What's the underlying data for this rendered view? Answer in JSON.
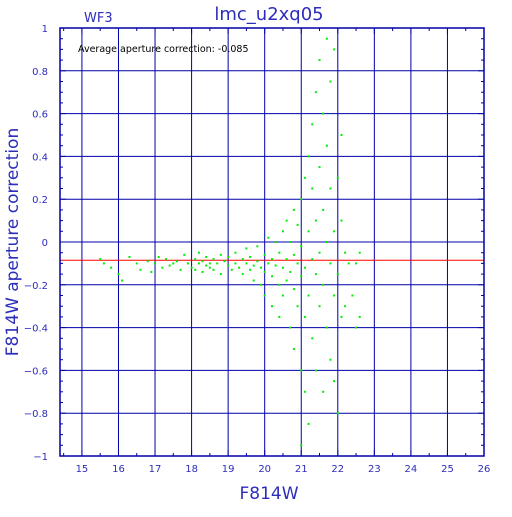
{
  "chart_data": {
    "type": "scatter",
    "title": "lmc_u2xq05",
    "panel_label": "WF3",
    "annotation": "Average aperture correction: -0.085",
    "xlabel": "F814W",
    "ylabel": "F814W aperture correction",
    "xlim": [
      14.4,
      26
    ],
    "ylim": [
      -1,
      1
    ],
    "x_ticks": [
      "15",
      "16",
      "17",
      "18",
      "19",
      "20",
      "21",
      "22",
      "23",
      "24",
      "25",
      "26"
    ],
    "y_ticks": [
      "1",
      "0.8",
      "0.6",
      "0.4",
      "0.2",
      "0",
      "−0.2",
      "−0.4",
      "−0.6",
      "−0.8",
      "−1"
    ],
    "grid": true,
    "reference_line_y": -0.085,
    "colors": {
      "axes": "#0000aa",
      "points": "#00ee00",
      "reference_line": "#ff0000",
      "text": "#2d2dbb"
    },
    "points": [
      [
        15.5,
        -0.08
      ],
      [
        15.6,
        -0.1
      ],
      [
        15.8,
        -0.12
      ],
      [
        16.0,
        -0.15
      ],
      [
        16.1,
        -0.18
      ],
      [
        16.3,
        -0.07
      ],
      [
        16.5,
        -0.1
      ],
      [
        16.6,
        -0.13
      ],
      [
        16.8,
        -0.09
      ],
      [
        16.9,
        -0.14
      ],
      [
        17.0,
        -0.1
      ],
      [
        17.1,
        -0.07
      ],
      [
        17.2,
        -0.12
      ],
      [
        17.3,
        -0.08
      ],
      [
        17.4,
        -0.11
      ],
      [
        17.5,
        -0.1
      ],
      [
        17.6,
        -0.09
      ],
      [
        17.7,
        -0.13
      ],
      [
        17.8,
        -0.06
      ],
      [
        17.9,
        -0.1
      ],
      [
        18.0,
        -0.12
      ],
      [
        18.1,
        -0.08
      ],
      [
        18.1,
        -0.13
      ],
      [
        18.2,
        -0.1
      ],
      [
        18.2,
        -0.05
      ],
      [
        18.3,
        -0.14
      ],
      [
        18.3,
        -0.09
      ],
      [
        18.4,
        -0.11
      ],
      [
        18.4,
        -0.07
      ],
      [
        18.5,
        -0.12
      ],
      [
        18.5,
        -0.1
      ],
      [
        18.6,
        -0.08
      ],
      [
        18.6,
        -0.13
      ],
      [
        18.7,
        -0.1
      ],
      [
        18.8,
        -0.06
      ],
      [
        18.8,
        -0.15
      ],
      [
        18.9,
        -0.09
      ],
      [
        19.0,
        -0.11
      ],
      [
        19.0,
        -0.07
      ],
      [
        19.1,
        -0.13
      ],
      [
        19.2,
        -0.1
      ],
      [
        19.2,
        -0.05
      ],
      [
        19.3,
        -0.12
      ],
      [
        19.4,
        -0.08
      ],
      [
        19.4,
        -0.15
      ],
      [
        19.5,
        -0.1
      ],
      [
        19.5,
        -0.03
      ],
      [
        19.6,
        -0.13
      ],
      [
        19.6,
        -0.07
      ],
      [
        19.7,
        -0.11
      ],
      [
        19.7,
        -0.18
      ],
      [
        19.8,
        -0.09
      ],
      [
        19.8,
        -0.02
      ],
      [
        19.9,
        -0.12
      ],
      [
        19.9,
        -0.2
      ],
      [
        20.0,
        -0.06
      ],
      [
        20.0,
        -0.14
      ],
      [
        20.0,
        -0.25
      ],
      [
        20.1,
        -0.1
      ],
      [
        20.1,
        0.02
      ],
      [
        20.2,
        -0.16
      ],
      [
        20.2,
        -0.08
      ],
      [
        20.2,
        -0.3
      ],
      [
        20.3,
        -0.11
      ],
      [
        20.3,
        0.0
      ],
      [
        20.4,
        -0.2
      ],
      [
        20.4,
        -0.05
      ],
      [
        20.4,
        -0.35
      ],
      [
        20.5,
        -0.12
      ],
      [
        20.5,
        0.05
      ],
      [
        20.5,
        -0.25
      ],
      [
        20.6,
        -0.08
      ],
      [
        20.6,
        -0.18
      ],
      [
        20.6,
        0.1
      ],
      [
        20.7,
        -0.14
      ],
      [
        20.7,
        -0.4
      ],
      [
        20.7,
        0.0
      ],
      [
        20.8,
        -0.22
      ],
      [
        20.8,
        -0.06
      ],
      [
        20.8,
        0.15
      ],
      [
        20.8,
        -0.5
      ],
      [
        20.9,
        -0.1
      ],
      [
        20.9,
        -0.3
      ],
      [
        20.9,
        0.08
      ],
      [
        21.0,
        -0.16
      ],
      [
        21.0,
        -0.6
      ],
      [
        21.0,
        0.2
      ],
      [
        21.0,
        -0.02
      ],
      [
        21.0,
        -0.95
      ],
      [
        21.1,
        -0.35
      ],
      [
        21.1,
        -0.12
      ],
      [
        21.1,
        0.3
      ],
      [
        21.1,
        -0.7
      ],
      [
        21.2,
        0.05
      ],
      [
        21.2,
        -0.25
      ],
      [
        21.2,
        0.4
      ],
      [
        21.2,
        -0.85
      ],
      [
        21.3,
        -0.08
      ],
      [
        21.3,
        0.25
      ],
      [
        21.3,
        -0.45
      ],
      [
        21.3,
        0.55
      ],
      [
        21.4,
        -0.15
      ],
      [
        21.4,
        0.1
      ],
      [
        21.4,
        -0.6
      ],
      [
        21.4,
        0.7
      ],
      [
        21.5,
        -0.05
      ],
      [
        21.5,
        0.35
      ],
      [
        21.5,
        -0.3
      ],
      [
        21.5,
        0.85
      ],
      [
        21.6,
        -0.2
      ],
      [
        21.6,
        0.15
      ],
      [
        21.6,
        -0.7
      ],
      [
        21.6,
        0.6
      ],
      [
        21.7,
        0.0
      ],
      [
        21.7,
        -0.4
      ],
      [
        21.7,
        0.45
      ],
      [
        21.7,
        0.95
      ],
      [
        21.8,
        -0.1
      ],
      [
        21.8,
        0.25
      ],
      [
        21.8,
        -0.55
      ],
      [
        21.8,
        0.75
      ],
      [
        21.9,
        -0.25
      ],
      [
        21.9,
        0.05
      ],
      [
        21.9,
        -0.65
      ],
      [
        21.9,
        0.9
      ],
      [
        22.0,
        -0.15
      ],
      [
        22.0,
        0.3
      ],
      [
        22.0,
        -0.8
      ],
      [
        22.1,
        0.1
      ],
      [
        22.1,
        -0.35
      ],
      [
        22.1,
        0.5
      ],
      [
        22.2,
        -0.05
      ],
      [
        22.2,
        -0.3
      ],
      [
        22.3,
        -0.1
      ],
      [
        22.4,
        -0.25
      ],
      [
        22.5,
        -0.4
      ],
      [
        22.5,
        -0.1
      ],
      [
        22.6,
        -0.35
      ],
      [
        22.6,
        -0.05
      ]
    ]
  }
}
